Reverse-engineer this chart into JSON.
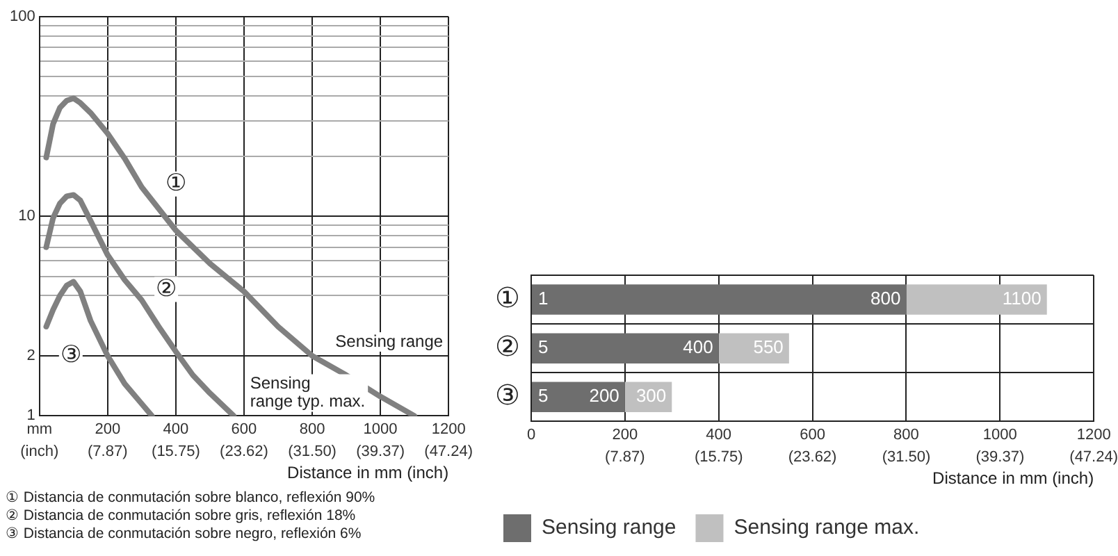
{
  "chart_data": [
    {
      "type": "line",
      "log": "y",
      "grid": true,
      "legend": false,
      "marker": "none",
      "line_style": "solid",
      "xlabel": "Distance in mm (inch)",
      "xlim": [
        0,
        1200
      ],
      "ylim": [
        1,
        100
      ],
      "xticks": [
        {
          "value": 0,
          "label": "mm"
        },
        200,
        400,
        600,
        800,
        1000,
        1200
      ],
      "x2lim": [
        0,
        47.24
      ],
      "x2ticks": [
        {
          "value": 0,
          "label": "(inch)"
        },
        {
          "value": 7.87,
          "label": "(7.87)"
        },
        {
          "value": 15.75,
          "label": "(15.75)"
        },
        {
          "value": 23.62,
          "label": "(23.62)"
        },
        {
          "value": 31.5,
          "label": "(31.50)"
        },
        {
          "value": 39.37,
          "label": "(39.37)"
        },
        {
          "value": 47.24,
          "label": "(47.24)"
        }
      ],
      "yticks": [
        1,
        2,
        {
          "value": 4,
          "label": null
        },
        {
          "value": 5,
          "label": null
        },
        {
          "value": 6,
          "label": null
        },
        {
          "value": 7,
          "label": null
        },
        {
          "value": 8,
          "label": null
        },
        {
          "value": 9,
          "label": null
        },
        10,
        {
          "value": 20,
          "label": null
        },
        {
          "value": 30,
          "label": null
        },
        {
          "value": 40,
          "label": null
        },
        {
          "value": 50,
          "label": null
        },
        {
          "value": 60,
          "label": null
        },
        {
          "value": 70,
          "label": null
        },
        {
          "value": 80,
          "label": null
        },
        {
          "value": 90,
          "label": null
        },
        100
      ],
      "series": [
        {
          "color": "#808080",
          "x": [
            20,
            40,
            60,
            80,
            100,
            120,
            150,
            200,
            250,
            300,
            400,
            500,
            600,
            700,
            800,
            900,
            1000,
            1100
          ],
          "values": [
            19.7,
            29,
            35,
            38,
            39,
            37,
            33,
            26,
            19.5,
            14,
            8.5,
            5.8,
            4.2,
            2.8,
            2,
            1.6,
            1.25,
            1
          ]
        },
        {
          "color": "#808080",
          "x": [
            20,
            40,
            60,
            80,
            100,
            120,
            150,
            200,
            250,
            300,
            350,
            400,
            450,
            500,
            570
          ],
          "values": [
            7,
            9.8,
            11.6,
            12.6,
            12.8,
            12,
            9.5,
            6.4,
            4.8,
            3.8,
            2.8,
            2.1,
            1.6,
            1.3,
            1
          ]
        },
        {
          "color": "#808080",
          "x": [
            20,
            40,
            60,
            80,
            100,
            120,
            150,
            200,
            250,
            300,
            330
          ],
          "values": [
            2.8,
            3.4,
            4,
            4.5,
            4.7,
            4.2,
            3,
            2,
            1.45,
            1.15,
            1
          ]
        }
      ],
      "annotations": [
        {
          "text": "①",
          "x": 400,
          "y": 14.5
        },
        {
          "text": "②",
          "x": 372,
          "y": 4.3
        },
        {
          "text": "③",
          "x": 92,
          "y": 2
        },
        "Sensing range",
        "Sensing\nrange typ. max.",
        "① Distancia de conmutación sobre blanco, reflexión 90%",
        "② Distancia de conmutación sobre gris, reflexión 18%",
        "③ Distancia de conmutación sobre negro, reflexión 6%"
      ]
    },
    {
      "type": "bar",
      "orientation": "horizontal",
      "stacked": true,
      "grid": true,
      "legend": "bottom",
      "xlabel": "Distance in mm (inch)",
      "xlim": [
        0,
        1200
      ],
      "xticks": [
        0,
        200,
        400,
        600,
        800,
        1000,
        1200
      ],
      "x2lim": [
        0,
        47.24
      ],
      "x2ticks": [
        {
          "value": 7.87,
          "label": "(7.87)"
        },
        {
          "value": 15.75,
          "label": "(15.75)"
        },
        {
          "value": 23.62,
          "label": "(23.62)"
        },
        {
          "value": 31.5,
          "label": "(31.50)"
        },
        {
          "value": 39.37,
          "label": "(39.37)"
        },
        {
          "value": 47.24,
          "label": "(47.24)"
        }
      ],
      "categories": [
        "①",
        "②",
        "③"
      ],
      "series": [
        {
          "name": "Sensing range",
          "color": "#6e6e6e",
          "values": [
            800,
            400,
            200
          ]
        },
        {
          "name": "Sensing range max.",
          "color": "#c0c0c0",
          "values": [
            300,
            150,
            100
          ]
        }
      ],
      "annotations": [
        "1",
        "5",
        "5",
        {
          "text": "800",
          "x": 800,
          "y": "①"
        },
        {
          "text": "400",
          "x": 400,
          "y": "②"
        },
        {
          "text": "200",
          "x": 200,
          "y": "③"
        },
        {
          "text": "1100",
          "x": 1100,
          "y": "①"
        },
        {
          "text": "550",
          "x": 550,
          "y": "②"
        },
        {
          "text": "300",
          "x": 300,
          "y": "③"
        }
      ]
    }
  ]
}
